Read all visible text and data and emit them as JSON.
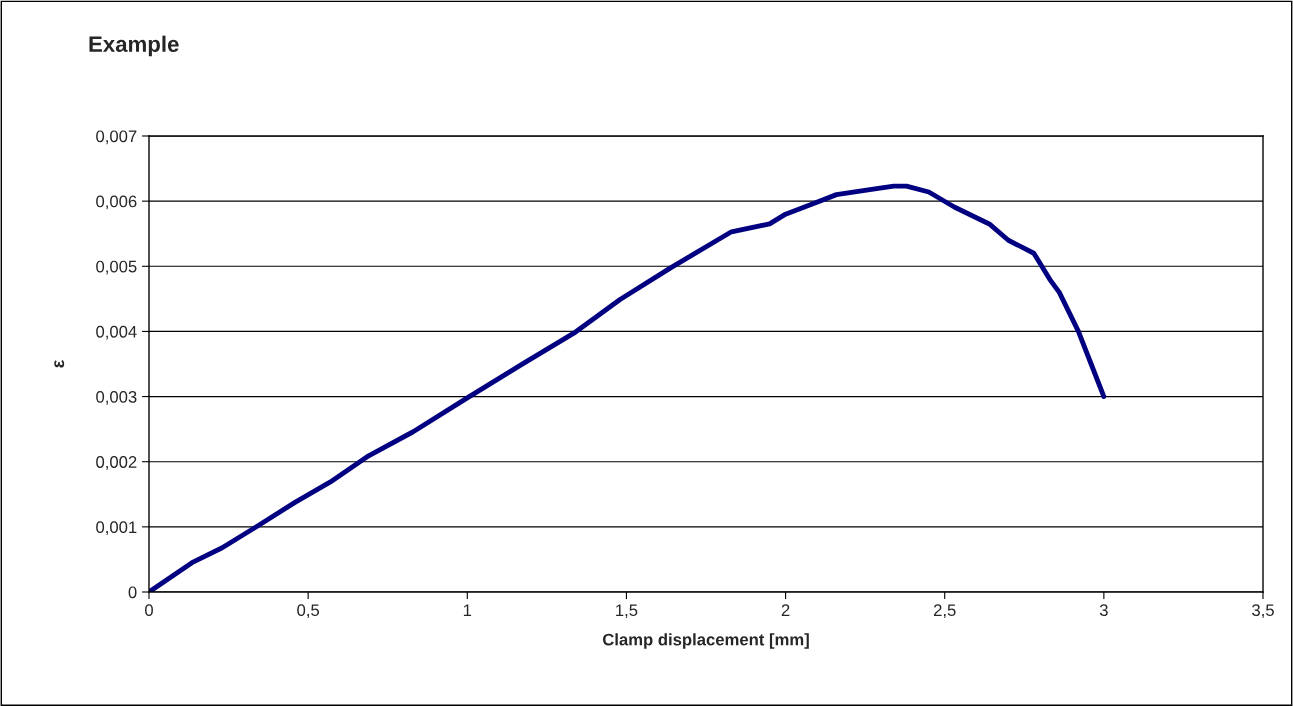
{
  "chart_data": {
    "type": "line",
    "title": "Example",
    "xlabel": "Clamp displacement [mm]",
    "ylabel": "ε",
    "series": [
      {
        "color": "#000080",
        "x": [
          0,
          0.135,
          0.23,
          0.34,
          0.46,
          0.57,
          0.69,
          0.83,
          1.0,
          1.17,
          1.34,
          1.48,
          1.64,
          1.83,
          1.95,
          2.0,
          2.08,
          2.16,
          2.27,
          2.34,
          2.38,
          2.45,
          2.53,
          2.64,
          2.7,
          2.78,
          2.83,
          2.86,
          2.92,
          2.96,
          3.0
        ],
        "values": [
          0,
          0.00045,
          0.00068,
          0.00101,
          0.00138,
          0.00169,
          0.00209,
          0.00246,
          0.00298,
          0.00349,
          0.00399,
          0.00449,
          0.00498,
          0.00553,
          0.00565,
          0.0058,
          0.00595,
          0.0061,
          0.00618,
          0.00623,
          0.00623,
          0.00614,
          0.00591,
          0.00565,
          0.0054,
          0.0052,
          0.0048,
          0.0046,
          0.004,
          0.0035,
          0.003
        ]
      }
    ],
    "xlim": [
      0,
      3.5
    ],
    "xticks": [
      0,
      {
        "value": 0.5,
        "label": "0,5"
      },
      1,
      {
        "value": 1.5,
        "label": "1,5"
      },
      2,
      {
        "value": 2.5,
        "label": "2,5"
      },
      3,
      {
        "value": 3.5,
        "label": "3,5"
      }
    ],
    "ylim": [
      0,
      0.007
    ],
    "yticks": [
      0,
      {
        "value": 0.001,
        "label": "0,001"
      },
      {
        "value": 0.002,
        "label": "0,002"
      },
      {
        "value": 0.003,
        "label": "0,003"
      },
      {
        "value": 0.004,
        "label": "0,004"
      },
      {
        "value": 0.005,
        "label": "0,005"
      },
      {
        "value": 0.006,
        "label": "0,006"
      },
      {
        "value": 0.007,
        "label": "0,007"
      }
    ],
    "grid": "y",
    "marker": "none",
    "line_style": "solid"
  }
}
